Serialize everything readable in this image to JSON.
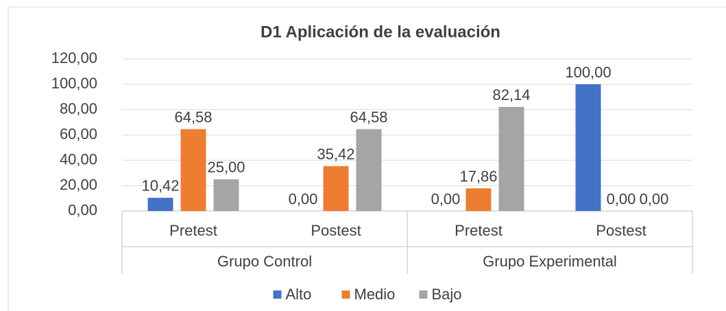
{
  "chart_data": {
    "type": "bar",
    "title": "D1 Aplicación de la evaluación",
    "categories": [
      "Pretest",
      "Postest",
      "Pretest",
      "Postest"
    ],
    "groups": [
      "Grupo Control",
      "Grupo Experimental"
    ],
    "series": [
      {
        "name": "Alto",
        "color": "#4472c4",
        "values": [
          10.42,
          0,
          0,
          100
        ],
        "value_labels": [
          "10,42",
          "0,00",
          "0,00",
          "100,00"
        ]
      },
      {
        "name": "Medio",
        "color": "#ed7d31",
        "values": [
          64.58,
          35.42,
          17.86,
          0
        ],
        "value_labels": [
          "64,58",
          "35,42",
          "17,86",
          "0,00"
        ]
      },
      {
        "name": "Bajo",
        "color": "#a5a5a5",
        "values": [
          25,
          64.58,
          82.14,
          0
        ],
        "value_labels": [
          "25,00",
          "64,58",
          "82,14",
          "0,00"
        ]
      }
    ],
    "ylim": [
      0,
      120
    ],
    "yticks": [
      {
        "value": 0,
        "label": "0,00"
      },
      {
        "value": 20,
        "label": "20,00"
      },
      {
        "value": 40,
        "label": "40,00"
      },
      {
        "value": 60,
        "label": "60,00"
      },
      {
        "value": 80,
        "label": "80,00"
      },
      {
        "value": 100,
        "label": "100,00"
      },
      {
        "value": 120,
        "label": "120,00"
      }
    ],
    "grid": true,
    "legend": "bottom"
  }
}
